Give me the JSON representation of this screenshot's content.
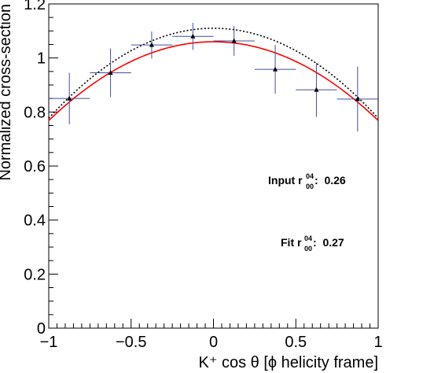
{
  "chart_data": {
    "type": "scatter",
    "title": "",
    "xlabel": "K⁺ cos θ [ϕ helicity frame]",
    "ylabel": "Normalized cross-section",
    "xlim": [
      -1,
      1
    ],
    "ylim": [
      0,
      1.2
    ],
    "grid": false,
    "x_tick_labels": [
      "−1",
      "−0.5",
      "0",
      "0.5",
      "1"
    ],
    "y_tick_labels": [
      "0",
      "0.2",
      "0.4",
      "0.6",
      "0.8",
      "1",
      "1.2"
    ],
    "series": [
      {
        "kind": "points_with_errors",
        "color": "#000000",
        "errorbar_color": "#3f4f9f",
        "x": [
          -0.875,
          -0.625,
          -0.375,
          -0.125,
          0.125,
          0.375,
          0.625,
          0.875
        ],
        "x_err": [
          0.125,
          0.125,
          0.125,
          0.125,
          0.125,
          0.125,
          0.125,
          0.125
        ],
        "y": [
          0.85,
          0.945,
          1.048,
          1.08,
          1.063,
          0.958,
          0.882,
          0.848
        ],
        "y_err": [
          0.095,
          0.09,
          0.05,
          0.05,
          0.055,
          0.09,
          0.1,
          0.12
        ]
      },
      {
        "kind": "curve",
        "color": "#000000",
        "style": "dotted",
        "function": "a*(1 - b*x^2)",
        "a": 1.11,
        "b": 0.3
      },
      {
        "kind": "curve",
        "color": "#ff0000",
        "style": "solid",
        "function": "a*(1 - b*x^2)",
        "a": 1.06,
        "b": 0.275
      }
    ],
    "annotations": [
      {
        "label_main": "Input r",
        "superscript": "04",
        "subscript": "00",
        "suffix": ":  0.26"
      },
      {
        "label_main": "Fit r",
        "superscript": "04",
        "subscript": "00",
        "suffix": ":  0.27"
      }
    ]
  }
}
